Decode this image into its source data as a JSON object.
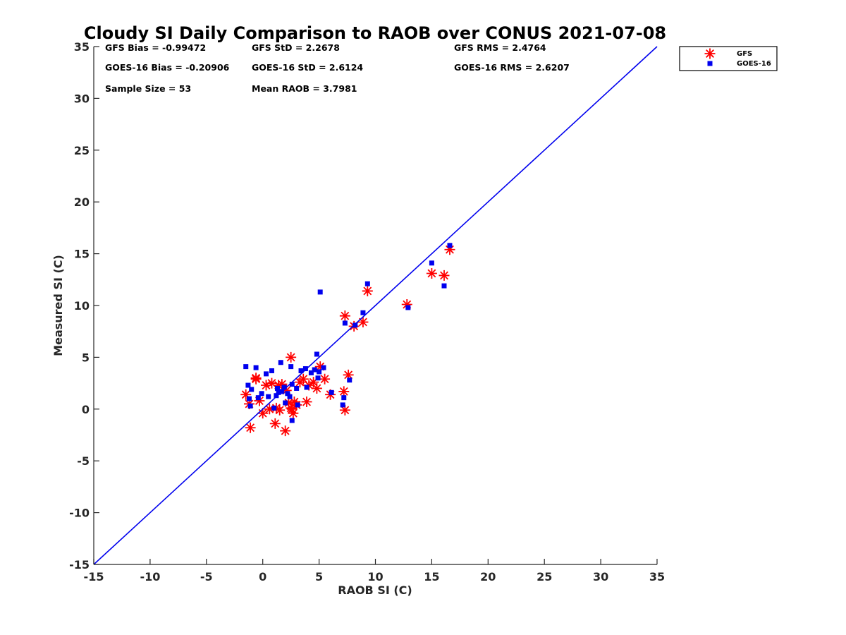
{
  "chart_data": {
    "type": "scatter",
    "title": "Cloudy SI Daily Comparison to RAOB over CONUS 2021-07-08",
    "xlabel": "RAOB SI (C)",
    "ylabel": "Measured SI (C)",
    "xlim": [
      -15,
      35
    ],
    "ylim": [
      -15,
      35
    ],
    "xticks": [
      -15,
      -10,
      -5,
      0,
      5,
      10,
      15,
      20,
      25,
      30,
      35
    ],
    "yticks": [
      -15,
      -10,
      -5,
      0,
      5,
      10,
      15,
      20,
      25,
      30,
      35
    ],
    "reference_line": {
      "type": "one-to-one",
      "color": "#0000ee"
    },
    "grid": false,
    "legend_position": "top-right-outside",
    "stats": [
      [
        "GFS Bias = -0.99472",
        "GFS StD = 2.2678",
        "GFS RMS = 2.4764"
      ],
      [
        "GOES-16 Bias = -0.20906",
        "GOES-16 StD = 2.6124",
        "GOES-16 RMS = 2.6207"
      ],
      [
        "Sample Size = 53",
        "Mean RAOB = 3.7981",
        ""
      ]
    ],
    "series": [
      {
        "name": "GFS",
        "marker": "asterisk",
        "color": "#ff0000",
        "points": [
          [
            -1.5,
            1.4
          ],
          [
            -1.2,
            0.5
          ],
          [
            -1.1,
            -1.8
          ],
          [
            -0.6,
            3.0
          ],
          [
            -0.6,
            2.9
          ],
          [
            -0.3,
            0.8
          ],
          [
            0.0,
            -0.4
          ],
          [
            0.3,
            2.3
          ],
          [
            0.6,
            0.0
          ],
          [
            0.8,
            2.5
          ],
          [
            1.1,
            -1.4
          ],
          [
            1.2,
            0.1
          ],
          [
            1.4,
            2.3
          ],
          [
            1.5,
            -0.1
          ],
          [
            1.7,
            2.4
          ],
          [
            2.0,
            -2.1
          ],
          [
            2.1,
            1.8
          ],
          [
            2.3,
            0.6
          ],
          [
            2.5,
            0.1
          ],
          [
            2.5,
            5.0
          ],
          [
            2.6,
            0.0
          ],
          [
            2.7,
            -0.4
          ],
          [
            2.8,
            0.7
          ],
          [
            3.0,
            0.4
          ],
          [
            3.3,
            2.6
          ],
          [
            3.6,
            2.9
          ],
          [
            3.9,
            0.7
          ],
          [
            4.1,
            2.3
          ],
          [
            4.5,
            2.6
          ],
          [
            4.8,
            2.0
          ],
          [
            5.1,
            4.1
          ],
          [
            5.5,
            2.9
          ],
          [
            6.0,
            1.4
          ],
          [
            7.2,
            1.7
          ],
          [
            7.3,
            -0.1
          ],
          [
            7.3,
            9.0
          ],
          [
            7.6,
            3.3
          ],
          [
            8.1,
            8.0
          ],
          [
            8.9,
            8.4
          ],
          [
            9.3,
            11.4
          ],
          [
            12.8,
            10.1
          ],
          [
            15.0,
            13.1
          ],
          [
            16.1,
            12.9
          ],
          [
            16.6,
            15.4
          ]
        ]
      },
      {
        "name": "GOES-16",
        "marker": "square",
        "color": "#0000ee",
        "points": [
          [
            -1.5,
            4.1
          ],
          [
            -1.3,
            2.3
          ],
          [
            -1.2,
            1.0
          ],
          [
            -1.1,
            0.3
          ],
          [
            -1.0,
            1.9
          ],
          [
            -0.6,
            4.0
          ],
          [
            -0.4,
            1.1
          ],
          [
            -0.1,
            1.5
          ],
          [
            0.3,
            3.4
          ],
          [
            0.5,
            1.2
          ],
          [
            0.8,
            3.7
          ],
          [
            1.0,
            0.1
          ],
          [
            1.2,
            1.3
          ],
          [
            1.3,
            2.0
          ],
          [
            1.4,
            1.6
          ],
          [
            1.6,
            4.5
          ],
          [
            1.7,
            1.7
          ],
          [
            1.9,
            2.1
          ],
          [
            2.0,
            0.6
          ],
          [
            2.2,
            1.5
          ],
          [
            2.4,
            1.2
          ],
          [
            2.5,
            4.1
          ],
          [
            2.6,
            2.4
          ],
          [
            2.6,
            -1.1
          ],
          [
            3.0,
            2.0
          ],
          [
            3.1,
            0.4
          ],
          [
            3.4,
            3.7
          ],
          [
            3.8,
            3.9
          ],
          [
            3.9,
            2.1
          ],
          [
            4.3,
            3.5
          ],
          [
            4.6,
            3.8
          ],
          [
            4.8,
            5.3
          ],
          [
            4.9,
            3.0
          ],
          [
            5.0,
            3.6
          ],
          [
            5.1,
            11.3
          ],
          [
            5.4,
            4.0
          ],
          [
            6.1,
            1.6
          ],
          [
            7.1,
            0.4
          ],
          [
            7.2,
            1.1
          ],
          [
            7.3,
            8.3
          ],
          [
            7.7,
            2.8
          ],
          [
            8.2,
            8.1
          ],
          [
            8.9,
            9.3
          ],
          [
            9.3,
            12.1
          ],
          [
            12.9,
            9.8
          ],
          [
            15.0,
            14.1
          ],
          [
            16.1,
            11.9
          ],
          [
            16.6,
            15.8
          ]
        ]
      }
    ]
  }
}
